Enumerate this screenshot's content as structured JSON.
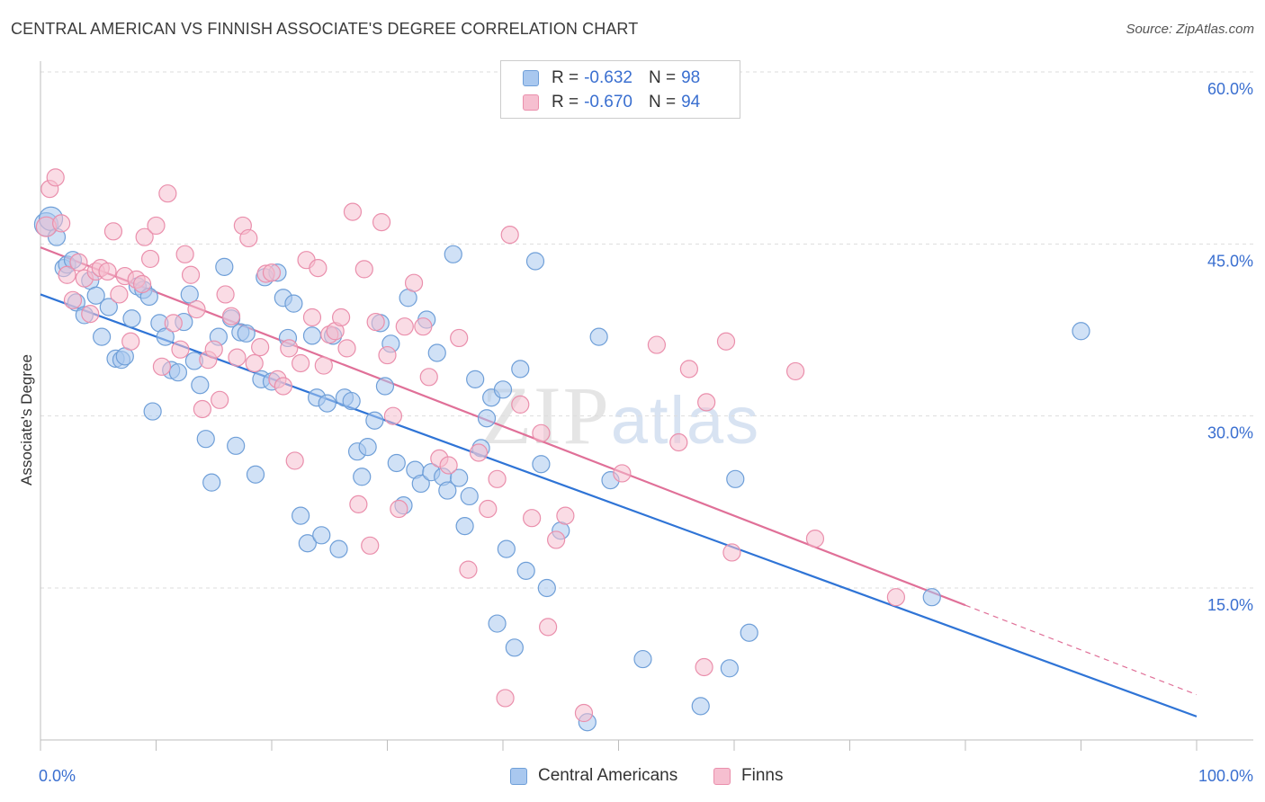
{
  "title": "CENTRAL AMERICAN VS FINNISH ASSOCIATE'S DEGREE CORRELATION CHART",
  "source": "Source: ZipAtlas.com",
  "colors": {
    "blue_fill": "#a9c8ef",
    "blue_stroke": "#6f9fd8",
    "blue_line": "#2f74d6",
    "pink_fill": "#f6bfd0",
    "pink_stroke": "#ea8fac",
    "pink_line": "#e07098",
    "tick_label": "#3a6fd0",
    "grid": "#dddddd"
  },
  "legend": {
    "rows": [
      {
        "r_label": "R =",
        "r_value": "-0.632",
        "n_label": "N =",
        "n_value": "98"
      },
      {
        "r_label": "R =",
        "r_value": "-0.670",
        "n_label": "N =",
        "n_value": "94"
      }
    ]
  },
  "bottom_legend": [
    "Central Americans",
    "Finns"
  ],
  "chart_data": {
    "type": "scatter",
    "title": "CENTRAL AMERICAN VS FINNISH ASSOCIATE'S DEGREE CORRELATION CHART",
    "xlabel": "",
    "ylabel": "Associate's Degree",
    "xlim": [
      0,
      100
    ],
    "ylim": [
      0,
      62
    ],
    "x_tick_labels": [
      "0.0%",
      "100.0%"
    ],
    "y_ticks": [
      15,
      30,
      45,
      60
    ],
    "y_tick_labels": [
      "15.0%",
      "30.0%",
      "45.0%",
      "60.0%"
    ],
    "grid": true,
    "legend_placement": "top-center",
    "watermark": "ZIPatlas",
    "series": [
      {
        "name": "Central Americans",
        "r": -0.632,
        "n": 98,
        "trend": {
          "x": [
            0,
            100
          ],
          "y": [
            40.6,
            3.8
          ]
        },
        "points": [
          [
            0.5,
            46.7
          ],
          [
            0.9,
            47.2
          ],
          [
            1.4,
            45.6
          ],
          [
            2.0,
            42.9
          ],
          [
            2.3,
            43.2
          ],
          [
            2.8,
            43.6
          ],
          [
            3.1,
            39.9
          ],
          [
            3.8,
            38.8
          ],
          [
            4.3,
            41.8
          ],
          [
            4.8,
            40.5
          ],
          [
            5.3,
            36.9
          ],
          [
            5.9,
            39.5
          ],
          [
            6.5,
            35.0
          ],
          [
            7.0,
            34.9
          ],
          [
            7.3,
            35.2
          ],
          [
            7.9,
            38.5
          ],
          [
            8.4,
            41.3
          ],
          [
            8.9,
            41.0
          ],
          [
            9.4,
            40.4
          ],
          [
            9.7,
            30.4
          ],
          [
            10.3,
            38.1
          ],
          [
            10.8,
            36.9
          ],
          [
            11.3,
            34.0
          ],
          [
            11.9,
            33.8
          ],
          [
            12.4,
            38.2
          ],
          [
            12.9,
            40.6
          ],
          [
            13.3,
            34.8
          ],
          [
            13.8,
            32.7
          ],
          [
            14.3,
            28.0
          ],
          [
            14.8,
            24.2
          ],
          [
            15.4,
            36.9
          ],
          [
            15.9,
            43.0
          ],
          [
            16.5,
            38.5
          ],
          [
            16.9,
            27.4
          ],
          [
            17.3,
            37.3
          ],
          [
            17.8,
            37.2
          ],
          [
            18.6,
            24.9
          ],
          [
            19.1,
            33.2
          ],
          [
            19.4,
            42.1
          ],
          [
            20.0,
            33.0
          ],
          [
            20.5,
            42.5
          ],
          [
            21.0,
            40.3
          ],
          [
            21.4,
            36.8
          ],
          [
            21.9,
            39.8
          ],
          [
            22.5,
            21.3
          ],
          [
            23.1,
            18.9
          ],
          [
            23.5,
            37.0
          ],
          [
            23.9,
            31.6
          ],
          [
            24.3,
            19.6
          ],
          [
            24.8,
            31.1
          ],
          [
            25.3,
            37.0
          ],
          [
            25.8,
            18.4
          ],
          [
            26.3,
            31.6
          ],
          [
            26.9,
            31.3
          ],
          [
            27.4,
            26.9
          ],
          [
            27.8,
            24.7
          ],
          [
            28.3,
            27.3
          ],
          [
            28.9,
            29.6
          ],
          [
            29.4,
            38.1
          ],
          [
            29.8,
            32.6
          ],
          [
            30.3,
            36.3
          ],
          [
            30.8,
            25.9
          ],
          [
            31.4,
            22.2
          ],
          [
            31.8,
            40.3
          ],
          [
            32.4,
            25.3
          ],
          [
            32.9,
            24.1
          ],
          [
            33.4,
            38.4
          ],
          [
            33.8,
            25.1
          ],
          [
            34.3,
            35.5
          ],
          [
            34.8,
            24.7
          ],
          [
            35.2,
            23.5
          ],
          [
            35.7,
            44.1
          ],
          [
            36.2,
            24.6
          ],
          [
            36.7,
            20.4
          ],
          [
            37.1,
            23.0
          ],
          [
            37.6,
            33.2
          ],
          [
            38.1,
            27.2
          ],
          [
            38.6,
            29.8
          ],
          [
            39.0,
            31.6
          ],
          [
            39.5,
            11.9
          ],
          [
            40.0,
            32.3
          ],
          [
            40.3,
            18.4
          ],
          [
            41.0,
            9.8
          ],
          [
            41.5,
            34.1
          ],
          [
            42.0,
            16.5
          ],
          [
            42.8,
            43.5
          ],
          [
            43.3,
            25.8
          ],
          [
            43.8,
            15.0
          ],
          [
            45.0,
            20.0
          ],
          [
            47.3,
            3.3
          ],
          [
            48.3,
            36.9
          ],
          [
            49.3,
            24.4
          ],
          [
            52.1,
            8.8
          ],
          [
            57.1,
            4.7
          ],
          [
            59.6,
            8.0
          ],
          [
            60.1,
            24.5
          ],
          [
            61.3,
            11.1
          ],
          [
            77.1,
            14.2
          ],
          [
            90.0,
            37.4
          ]
        ]
      },
      {
        "name": "Finns",
        "r": -0.67,
        "n": 94,
        "trend": {
          "x": [
            0,
            100
          ],
          "y": [
            44.7,
            5.7
          ]
        },
        "points": [
          [
            0.5,
            46.5
          ],
          [
            0.8,
            49.8
          ],
          [
            1.3,
            50.8
          ],
          [
            1.8,
            46.8
          ],
          [
            2.3,
            42.3
          ],
          [
            2.8,
            40.1
          ],
          [
            3.3,
            43.4
          ],
          [
            3.8,
            42.0
          ],
          [
            4.3,
            38.9
          ],
          [
            4.8,
            42.6
          ],
          [
            5.2,
            42.9
          ],
          [
            5.8,
            42.6
          ],
          [
            6.3,
            46.1
          ],
          [
            6.8,
            40.6
          ],
          [
            7.3,
            42.2
          ],
          [
            7.8,
            36.5
          ],
          [
            8.3,
            41.9
          ],
          [
            8.8,
            41.5
          ],
          [
            9.0,
            45.6
          ],
          [
            9.5,
            43.7
          ],
          [
            10.0,
            46.6
          ],
          [
            10.5,
            34.3
          ],
          [
            11.0,
            49.4
          ],
          [
            11.5,
            38.1
          ],
          [
            12.1,
            35.8
          ],
          [
            12.5,
            44.1
          ],
          [
            13.0,
            42.3
          ],
          [
            13.5,
            39.3
          ],
          [
            14.0,
            30.6
          ],
          [
            14.5,
            34.9
          ],
          [
            15.0,
            35.8
          ],
          [
            15.5,
            31.4
          ],
          [
            16.0,
            40.6
          ],
          [
            16.5,
            38.7
          ],
          [
            17.0,
            35.1
          ],
          [
            17.5,
            46.6
          ],
          [
            18.0,
            45.5
          ],
          [
            18.5,
            34.6
          ],
          [
            19.0,
            36.0
          ],
          [
            19.5,
            42.4
          ],
          [
            20.0,
            42.5
          ],
          [
            20.5,
            33.2
          ],
          [
            21.0,
            32.6
          ],
          [
            21.5,
            35.9
          ],
          [
            22.0,
            26.1
          ],
          [
            22.5,
            34.6
          ],
          [
            23.0,
            43.6
          ],
          [
            23.5,
            38.6
          ],
          [
            24.0,
            42.9
          ],
          [
            24.5,
            34.4
          ],
          [
            25.0,
            37.1
          ],
          [
            25.5,
            37.4
          ],
          [
            26.0,
            38.6
          ],
          [
            26.5,
            35.9
          ],
          [
            27.0,
            47.8
          ],
          [
            27.5,
            22.3
          ],
          [
            28.0,
            42.8
          ],
          [
            28.5,
            18.7
          ],
          [
            29.0,
            38.2
          ],
          [
            29.5,
            46.9
          ],
          [
            30.0,
            35.3
          ],
          [
            30.5,
            30.0
          ],
          [
            31.0,
            21.9
          ],
          [
            31.5,
            37.8
          ],
          [
            32.3,
            41.6
          ],
          [
            33.1,
            37.8
          ],
          [
            33.6,
            33.4
          ],
          [
            34.5,
            26.3
          ],
          [
            35.3,
            25.7
          ],
          [
            36.2,
            36.8
          ],
          [
            37.0,
            16.6
          ],
          [
            37.9,
            26.8
          ],
          [
            38.7,
            21.9
          ],
          [
            39.5,
            24.5
          ],
          [
            40.2,
            5.4
          ],
          [
            40.6,
            45.8
          ],
          [
            41.5,
            31.0
          ],
          [
            42.5,
            21.1
          ],
          [
            43.3,
            28.5
          ],
          [
            43.9,
            11.6
          ],
          [
            44.6,
            19.2
          ],
          [
            45.4,
            21.3
          ],
          [
            47.0,
            4.1
          ],
          [
            50.3,
            25.0
          ],
          [
            53.3,
            36.2
          ],
          [
            55.2,
            27.7
          ],
          [
            57.4,
            8.1
          ],
          [
            59.3,
            36.5
          ],
          [
            59.8,
            18.1
          ],
          [
            65.3,
            33.9
          ],
          [
            67.0,
            19.3
          ],
          [
            74.0,
            14.2
          ],
          [
            56.1,
            34.1
          ],
          [
            57.6,
            31.2
          ]
        ]
      }
    ]
  }
}
